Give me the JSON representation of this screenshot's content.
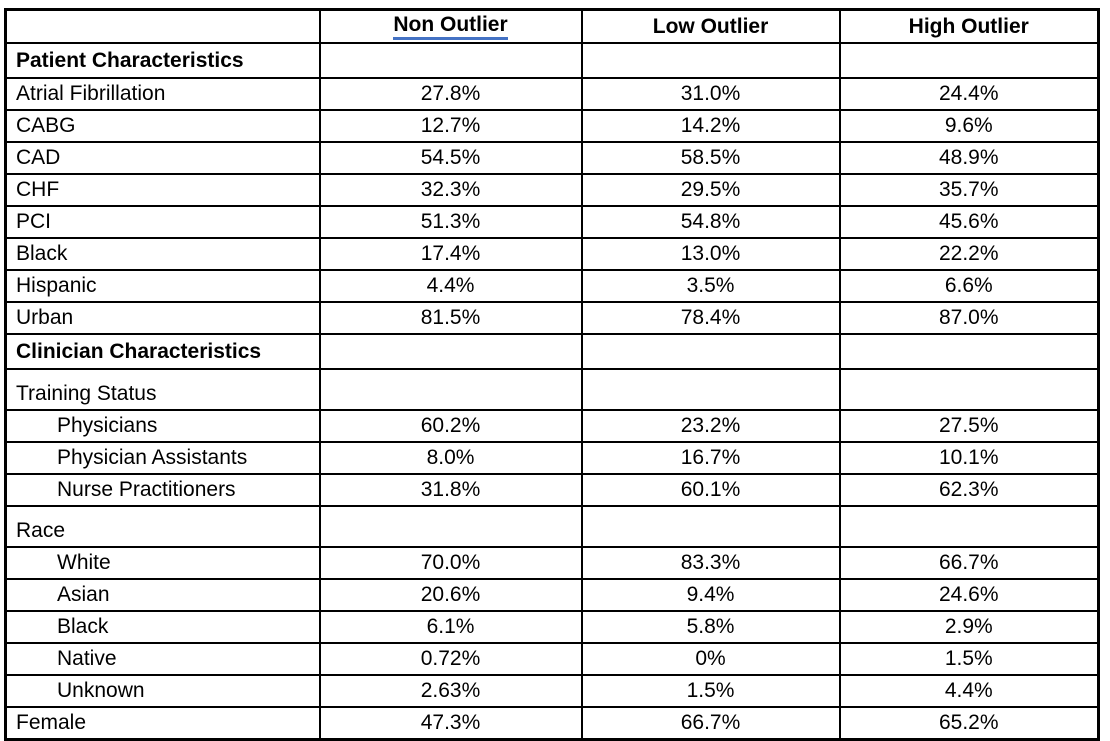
{
  "colors": {
    "header_underline": "#4472C4",
    "border": "#000000",
    "text": "#000000",
    "background": "#FFFFFF"
  },
  "chart_data": {
    "type": "table",
    "title": "",
    "columns": [
      {
        "label": "",
        "underlined": false
      },
      {
        "label": "Non Outlier",
        "underlined": true
      },
      {
        "label": "Low Outlier",
        "underlined": false
      },
      {
        "label": "High Outlier",
        "underlined": false
      }
    ],
    "rows": [
      {
        "label": "Patient Characteristics",
        "kind": "section",
        "values": [
          "",
          "",
          ""
        ]
      },
      {
        "label": "Atrial Fibrillation",
        "kind": "data",
        "values": [
          "27.8%",
          "31.0%",
          "24.4%"
        ]
      },
      {
        "label": "CABG",
        "kind": "data",
        "values": [
          "12.7%",
          "14.2%",
          "9.6%"
        ]
      },
      {
        "label": "CAD",
        "kind": "data",
        "values": [
          "54.5%",
          "58.5%",
          "48.9%"
        ]
      },
      {
        "label": "CHF",
        "kind": "data",
        "values": [
          "32.3%",
          "29.5%",
          "35.7%"
        ]
      },
      {
        "label": "PCI",
        "kind": "data",
        "values": [
          "51.3%",
          "54.8%",
          "45.6%"
        ]
      },
      {
        "label": "Black",
        "kind": "data",
        "values": [
          "17.4%",
          "13.0%",
          "22.2%"
        ]
      },
      {
        "label": "Hispanic",
        "kind": "data",
        "values": [
          "4.4%",
          "3.5%",
          "6.6%"
        ]
      },
      {
        "label": "Urban",
        "kind": "data",
        "values": [
          "81.5%",
          "78.4%",
          "87.0%"
        ]
      },
      {
        "label": "Clinician Characteristics",
        "kind": "section",
        "values": [
          "",
          "",
          ""
        ]
      },
      {
        "label": "Training Status",
        "kind": "subsection",
        "values": [
          "",
          "",
          ""
        ]
      },
      {
        "label": "Physicians",
        "kind": "indented",
        "values": [
          "60.2%",
          "23.2%",
          "27.5%"
        ]
      },
      {
        "label": "Physician Assistants",
        "kind": "indented",
        "values": [
          "8.0%",
          "16.7%",
          "10.1%"
        ]
      },
      {
        "label": "Nurse Practitioners",
        "kind": "indented",
        "values": [
          "31.8%",
          "60.1%",
          "62.3%"
        ]
      },
      {
        "label": "Race",
        "kind": "subsection",
        "values": [
          "",
          "",
          ""
        ]
      },
      {
        "label": "White",
        "kind": "indented",
        "values": [
          "70.0%",
          "83.3%",
          "66.7%"
        ]
      },
      {
        "label": "Asian",
        "kind": "indented",
        "values": [
          "20.6%",
          "9.4%",
          "24.6%"
        ]
      },
      {
        "label": "Black",
        "kind": "indented",
        "values": [
          "6.1%",
          "5.8%",
          "2.9%"
        ]
      },
      {
        "label": "Native",
        "kind": "indented",
        "values": [
          "0.72%",
          "0%",
          "1.5%"
        ]
      },
      {
        "label": "Unknown",
        "kind": "indented",
        "values": [
          "2.63%",
          "1.5%",
          "4.4%"
        ]
      },
      {
        "label": "Female",
        "kind": "data",
        "values": [
          "47.3%",
          "66.7%",
          "65.2%"
        ]
      }
    ]
  }
}
